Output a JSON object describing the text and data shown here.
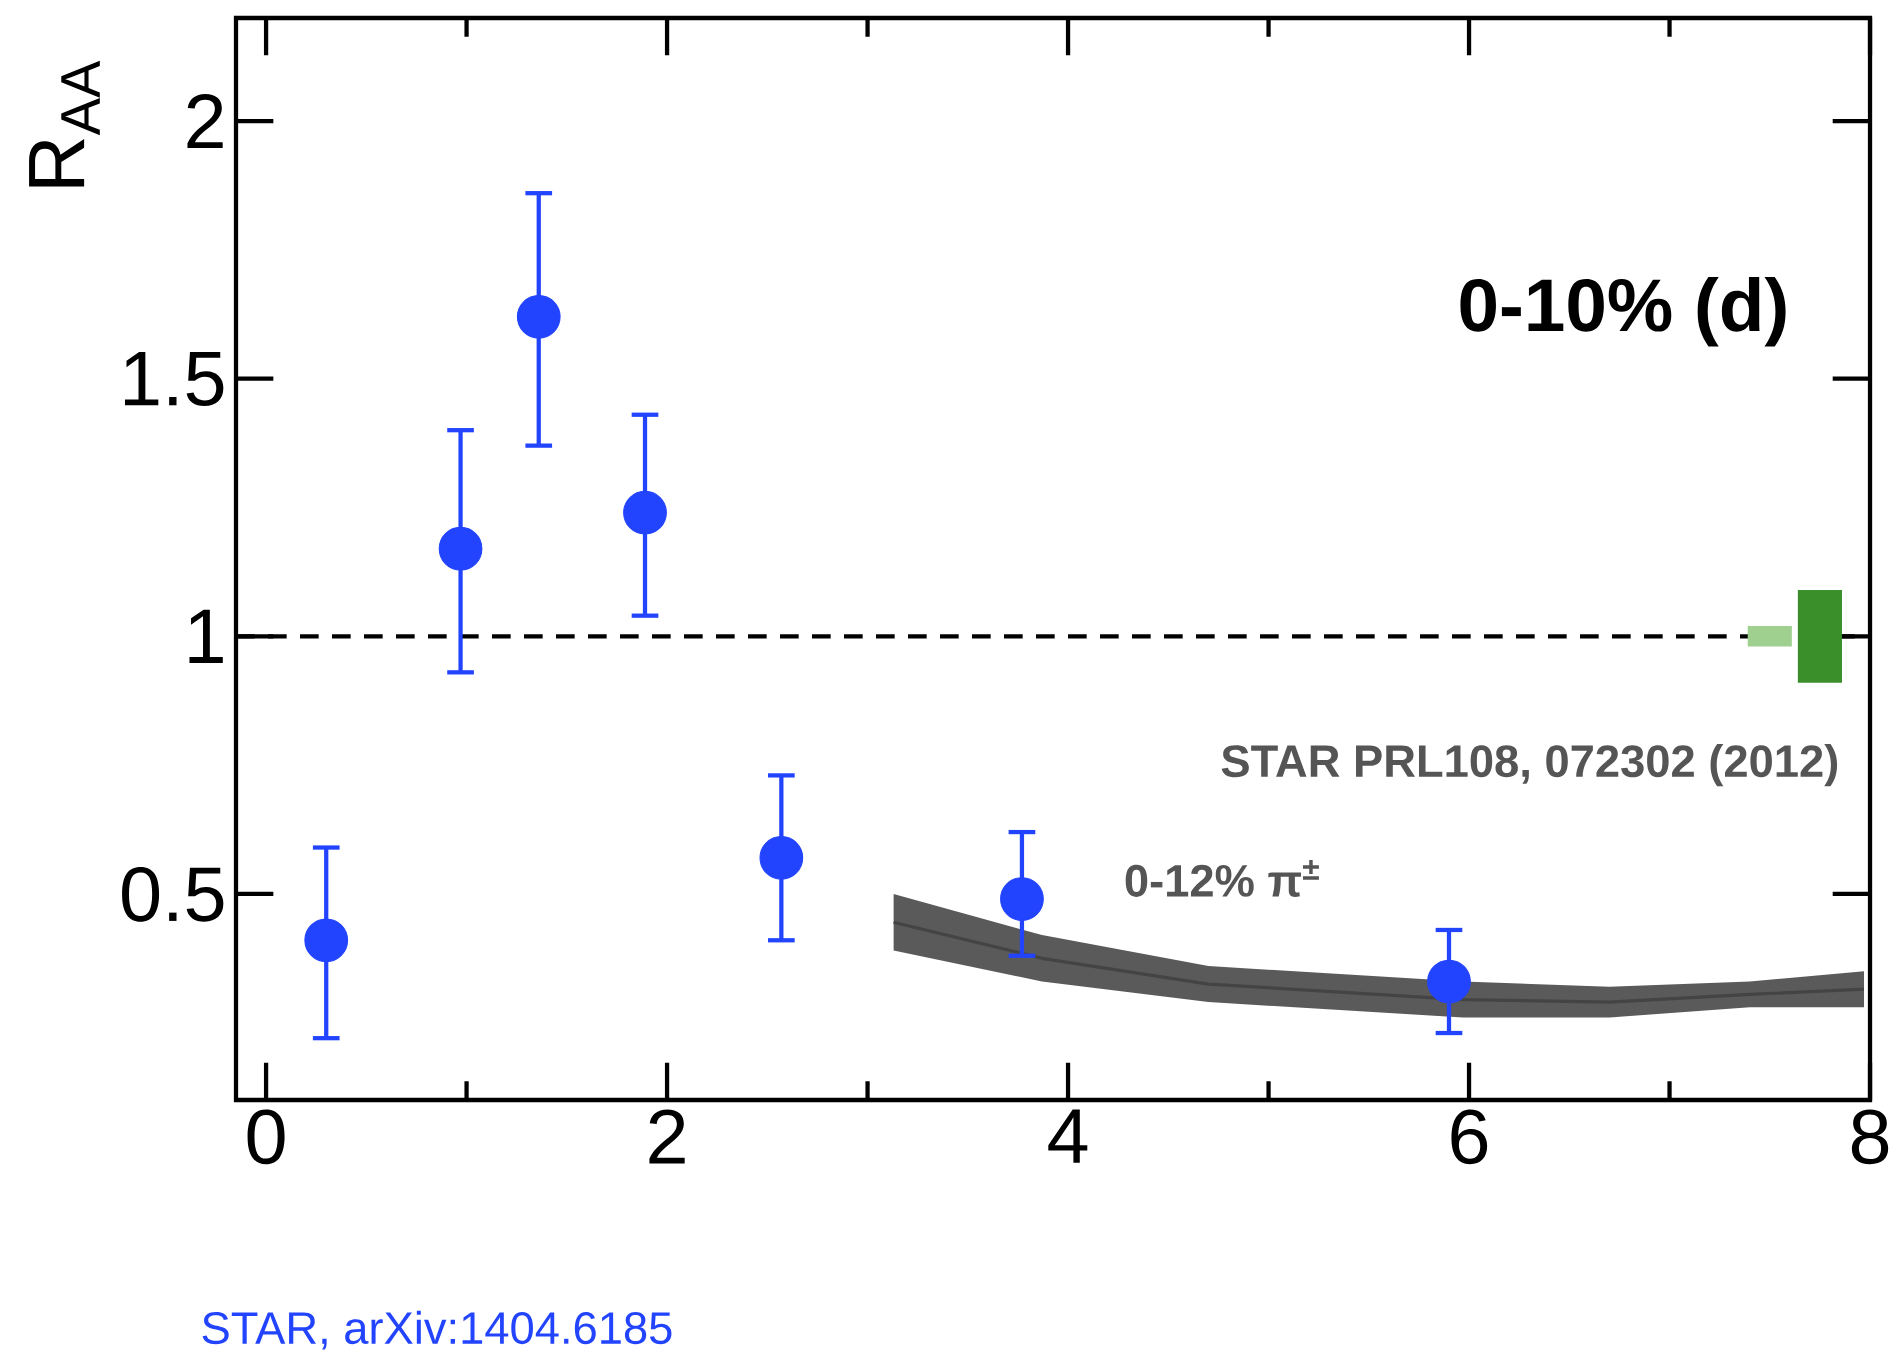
{
  "chart_data": {
    "type": "scatter",
    "xlim": [
      -0.15,
      8
    ],
    "ylim": [
      0.1,
      2.2
    ],
    "xticks": [
      0,
      2,
      4,
      6,
      8
    ],
    "yticks": [
      0.5,
      1,
      1.5,
      2
    ],
    "ylabel": "R$_{AA}$",
    "line_style": "solid",
    "ref_lines": [
      {
        "axis": "y",
        "value": 1,
        "line_style": "dashed",
        "color": "#000000"
      }
    ],
    "annotations": [
      "0-10%  (d)",
      "STAR PRL108, 072302 (2012)",
      "0-12%  π$^{±}$",
      "STAR, arXiv:1404.6185"
    ],
    "series": [
      {
        "marker": "circle",
        "color": "#2244ff",
        "x": [
          0.3,
          0.97,
          1.36,
          1.89,
          2.57,
          3.77,
          5.9
        ],
        "values": [
          0.41,
          1.17,
          1.62,
          1.24,
          0.57,
          0.49,
          0.33
        ],
        "errors": [
          [
            0.22,
            0.59
          ],
          [
            0.93,
            1.4
          ],
          [
            1.37,
            1.86
          ],
          [
            1.04,
            1.43
          ],
          [
            0.41,
            0.73
          ],
          [
            0.38,
            0.62
          ],
          [
            0.23,
            0.43
          ]
        ]
      },
      {
        "type": "line",
        "marker": "none",
        "color": "#444444",
        "x": [
          3.13,
          3.87,
          4.7,
          5.97,
          6.7,
          7.4,
          7.97
        ],
        "values": [
          0.445,
          0.375,
          0.325,
          0.295,
          0.29,
          0.305,
          0.315
        ],
        "lower": [
          0.39,
          0.33,
          0.29,
          0.26,
          0.26,
          0.28,
          0.28
        ],
        "upper": [
          0.5,
          0.42,
          0.36,
          0.33,
          0.32,
          0.33,
          0.35
        ]
      },
      {
        "type": "bar",
        "color": "#3a8f2a",
        "x": [
          7.75
        ],
        "base": [
          0.91
        ],
        "values": [
          0.18
        ]
      },
      {
        "type": "bar",
        "color": "#9fd08f",
        "x": [
          7.5
        ],
        "base": [
          0.98
        ],
        "values": [
          0.04
        ]
      }
    ]
  }
}
